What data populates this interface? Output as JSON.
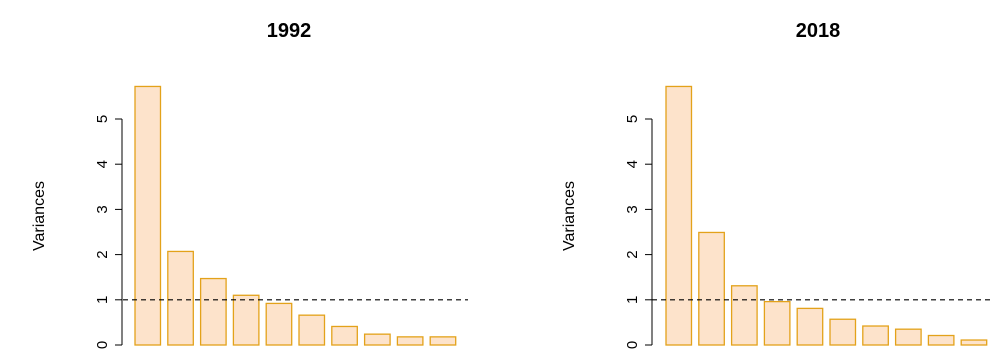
{
  "chart_data": [
    {
      "type": "bar",
      "title": "1992",
      "ylabel": "Variances",
      "yticks": [
        "0",
        "1",
        "2",
        "3",
        "4",
        "5"
      ],
      "ylim": [
        0,
        5.75
      ],
      "values": [
        5.72,
        2.07,
        1.47,
        1.1,
        0.92,
        0.66,
        0.41,
        0.24,
        0.18,
        0.18
      ],
      "reference_line": 1,
      "colors": {
        "fill": "#fde3cb",
        "border": "#e3a21a",
        "refline": "#000000"
      }
    },
    {
      "type": "bar",
      "title": "2018",
      "ylabel": "Variances",
      "yticks": [
        "0",
        "1",
        "2",
        "3",
        "4",
        "5"
      ],
      "ylim": [
        0,
        5.75
      ],
      "values": [
        5.72,
        2.49,
        1.31,
        0.96,
        0.81,
        0.57,
        0.42,
        0.35,
        0.21,
        0.11
      ],
      "reference_line": 1,
      "colors": {
        "fill": "#fde3cb",
        "border": "#e3a21a",
        "refline": "#000000"
      }
    }
  ]
}
